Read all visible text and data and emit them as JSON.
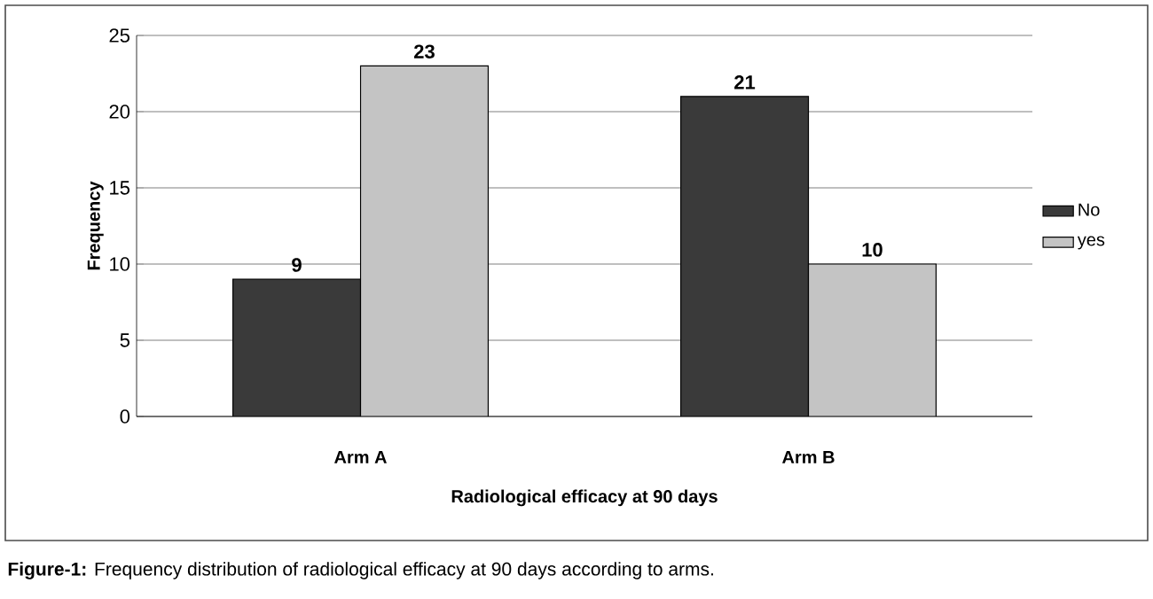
{
  "chart_data": {
    "type": "bar",
    "xlabel": "Radiological efficacy at 90 days",
    "ylabel": "Frequency",
    "categories": [
      "Arm A",
      "Arm B"
    ],
    "series": [
      {
        "name": "No",
        "color": "#3a3a3a",
        "values": [
          9,
          21
        ]
      },
      {
        "name": "yes",
        "color": "#c4c4c4",
        "values": [
          23,
          10
        ]
      }
    ],
    "ylim": [
      0,
      25
    ],
    "yticks": [
      0,
      5,
      10,
      15,
      20,
      25
    ],
    "grid": "y",
    "legend": "right",
    "data_labels": true,
    "annotations": [
      "**Figure-1:** Frequency distribution of radiological efficacy at 90 days according to arms."
    ]
  }
}
